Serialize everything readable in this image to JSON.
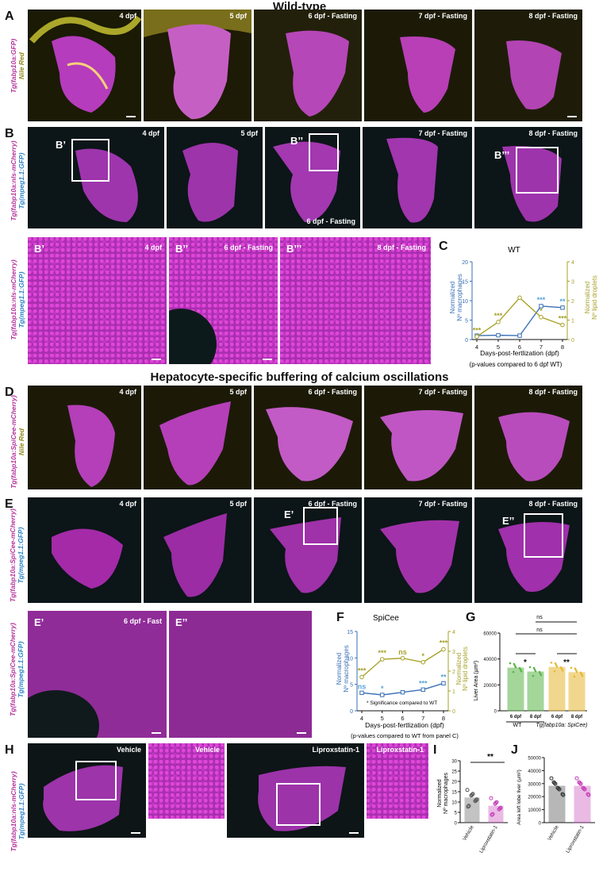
{
  "headers": {
    "wild_type": "Wild-type",
    "spicee": "Hepatocyte-specific buffering of calcium oscillations"
  },
  "panel_letters": {
    "A": "A",
    "B": "B",
    "C": "C",
    "D": "D",
    "E": "E",
    "F": "F",
    "G": "G",
    "H": "H",
    "I": "I",
    "J": "J"
  },
  "row_labels": {
    "A": [
      "Tg(fabp10a:GFP)",
      "Nile Red"
    ],
    "B": [
      "Tg(fabp10a:nls-mCherry)",
      "Tg(mpeg1.1:GFP)"
    ],
    "B2": [
      "Tg(fabp10a:nls-mCherry)",
      "Tg(mpeg1.1:GFP)"
    ],
    "D": [
      "Tg(fabp10a:SpiCee-mCherry)",
      "Nile Red"
    ],
    "E": [
      "Tg(fabp10a:SpiCee-mCherry)",
      "Tg(mpeg1.1:GFP)"
    ],
    "E2": [
      "Tg(fabp10a:SpiCee-mCherry)",
      "Tg(mpeg1.1:GFP)"
    ],
    "H": [
      "Tg(fabp10a:nls-mCherry)",
      "Tg(mpeg1.1:GFP)"
    ]
  },
  "captions": {
    "A": [
      "4 dpf",
      "5 dpf",
      "6 dpf - Fasting",
      "7 dpf - Fasting",
      "8 dpf - Fasting"
    ],
    "B": [
      "4 dpf",
      "5 dpf",
      "6 dpf - Fasting",
      "7 dpf - Fasting",
      "8 dpf - Fasting"
    ],
    "B_sub": [
      "B’",
      "B’’",
      "B’’’"
    ],
    "B_zoom": [
      "4 dpf",
      "6 dpf - Fasting",
      "8 dpf - Fasting"
    ],
    "D": [
      "4 dpf",
      "5 dpf",
      "6 dpf - Fasting",
      "7 dpf - Fasting",
      "8 dpf - Fasting"
    ],
    "E": [
      "4 dpf",
      "5 dpf",
      "6 dpf - Fasting",
      "7 dpf - Fasting",
      "8 dpf - Fasting"
    ],
    "E_sub": [
      "E’",
      "E’’"
    ],
    "E_zoom": [
      "6 dpf - Fast",
      ""
    ],
    "H": [
      "Vehicle",
      "Vehicle",
      "Liproxstatin-1",
      "Liproxstatin-1"
    ]
  },
  "panelC": {
    "title": "WT",
    "xlabel": "Days-post-fertlization (dpf)",
    "left_label": [
      "Normalized",
      "Nº macrophages"
    ],
    "right_label": [
      "Normalized",
      "Nº lipid droplets"
    ],
    "note": "(p-values compared to 6 dpf WT)"
  },
  "panelF": {
    "title": "SpiCee",
    "xlabel": "Days-post-fertlization (dpf)",
    "left_label": [
      "Normalized",
      "Nº macrophages"
    ],
    "right_label": [
      "Normalized",
      "Nº lipid droplets"
    ],
    "legend": "* Significance compared to WT",
    "note": "(p-values compared to WT from panel C)"
  },
  "panelG": {
    "ylabel": "Liver Area (µm²)",
    "group1": "WT",
    "group2": "Tg(fabp10a: SpiCee)",
    "sig_top": "ns",
    "sig_mid": "ns"
  },
  "panelI": {
    "ylabel": [
      "Normalized",
      "Nº macrophages"
    ],
    "sig": "**"
  },
  "panelJ": {
    "ylabel": "Area left lobe liver (µm²)"
  },
  "colors": {
    "macrophage": "#3a6fb5",
    "lipid": "#a7a22a",
    "cyan_sig": "#5ba3d6",
    "g_wt": "#5bb548",
    "g_spicee": "#e6b833",
    "i_lip": "#c43cb7"
  },
  "chart_data": [
    {
      "type": "line",
      "panel": "C",
      "x": [
        4,
        5,
        6,
        7,
        8
      ],
      "xlim": [
        4,
        8
      ],
      "y_left_ticks": [
        "0",
        "5",
        "10",
        "15",
        "20"
      ],
      "y_right_ticks": [
        "0",
        "1",
        "2",
        "3",
        "4"
      ],
      "series": [
        {
          "name": "Nº macrophages",
          "axis": "left",
          "values": [
            1,
            1.1,
            1,
            8.6,
            8.2
          ],
          "labels": [
            "",
            "",
            "",
            "***",
            "**"
          ]
        },
        {
          "name": "Nº lipid droplets",
          "axis": "right",
          "values": [
            0.15,
            0.9,
            2.15,
            1.15,
            0.75
          ],
          "labels": [
            "***",
            "***",
            "",
            "*",
            "***"
          ]
        }
      ]
    },
    {
      "type": "line",
      "panel": "F",
      "x": [
        4,
        5,
        6,
        7,
        8
      ],
      "xlim": [
        4,
        8
      ],
      "y_left_ticks": [
        "0",
        "5",
        "10",
        "15"
      ],
      "y_right_ticks": [
        "0",
        "1",
        "2",
        "3",
        "4"
      ],
      "series": [
        {
          "name": "Nº macrophages",
          "axis": "left",
          "values": [
            3.4,
            3,
            3.5,
            4,
            5.2
          ],
          "labels": [
            "ns",
            "*",
            "",
            "***",
            "**"
          ]
        },
        {
          "name": "Nº lipid droplets",
          "axis": "right",
          "values": [
            1.7,
            2.6,
            2.65,
            2.45,
            3.1
          ],
          "labels": [
            "***",
            "***",
            "ns",
            "*",
            "***"
          ]
        }
      ]
    },
    {
      "type": "bar",
      "panel": "G",
      "categories": [
        "6 dpf",
        "8 dpf",
        "6 dpf",
        "8 dpf"
      ],
      "values": [
        33000,
        30000,
        33500,
        29500
      ],
      "ylim": [
        0,
        60000
      ],
      "y_ticks": [
        "0",
        "20000",
        "40000",
        "60000"
      ],
      "sig": [
        "*",
        "**"
      ]
    },
    {
      "type": "bar",
      "panel": "I",
      "categories": [
        "Vehicle",
        "Liproxstatin-1"
      ],
      "values": [
        12,
        8
      ],
      "ylim": [
        0,
        30
      ],
      "y_ticks": [
        "0",
        "5",
        "10",
        "15",
        "20",
        "25",
        "30"
      ]
    },
    {
      "type": "bar",
      "panel": "J",
      "categories": [
        "Vehicle",
        "Liproxstatin-1"
      ],
      "values": [
        28000,
        28000
      ],
      "ylim": [
        0,
        50000
      ],
      "y_ticks": [
        "0",
        "10000",
        "20000",
        "30000",
        "40000",
        "50000"
      ]
    }
  ]
}
